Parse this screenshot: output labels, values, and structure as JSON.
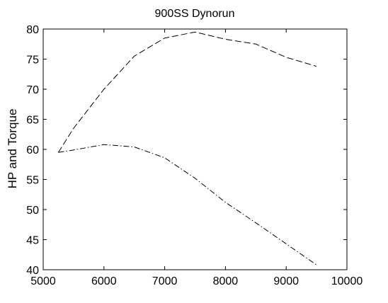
{
  "chart_data": {
    "type": "line",
    "title": "900SS Dynorun",
    "xlabel": "",
    "ylabel": "HP and Torque",
    "xlim": [
      5000,
      10000
    ],
    "ylim": [
      40,
      80
    ],
    "xticks": [
      5000,
      6000,
      7000,
      8000,
      9000,
      10000
    ],
    "yticks": [
      40,
      45,
      50,
      55,
      60,
      65,
      70,
      75,
      80
    ],
    "xtick_labels": [
      "5000",
      "6000",
      "7000",
      "8000",
      "9000",
      "10000"
    ],
    "ytick_labels": [
      "40",
      "45",
      "50",
      "55",
      "60",
      "65",
      "70",
      "75",
      "80"
    ],
    "grid": false,
    "legend": false,
    "series": [
      {
        "line_style": "dashed",
        "color": "#000000",
        "x": [
          5250,
          5500,
          6000,
          6500,
          7000,
          7500,
          8000,
          8500,
          9000,
          9500
        ],
        "y": [
          59.5,
          63.5,
          70.0,
          75.5,
          78.5,
          79.5,
          78.3,
          77.5,
          75.3,
          73.8
        ]
      },
      {
        "line_style": "dashdot",
        "color": "#000000",
        "x": [
          5250,
          5500,
          6000,
          6500,
          7000,
          7500,
          8000,
          8500,
          9000,
          9500
        ],
        "y": [
          59.5,
          59.9,
          60.8,
          60.4,
          58.6,
          55.2,
          51.2,
          47.8,
          44.3,
          40.8
        ]
      }
    ]
  }
}
